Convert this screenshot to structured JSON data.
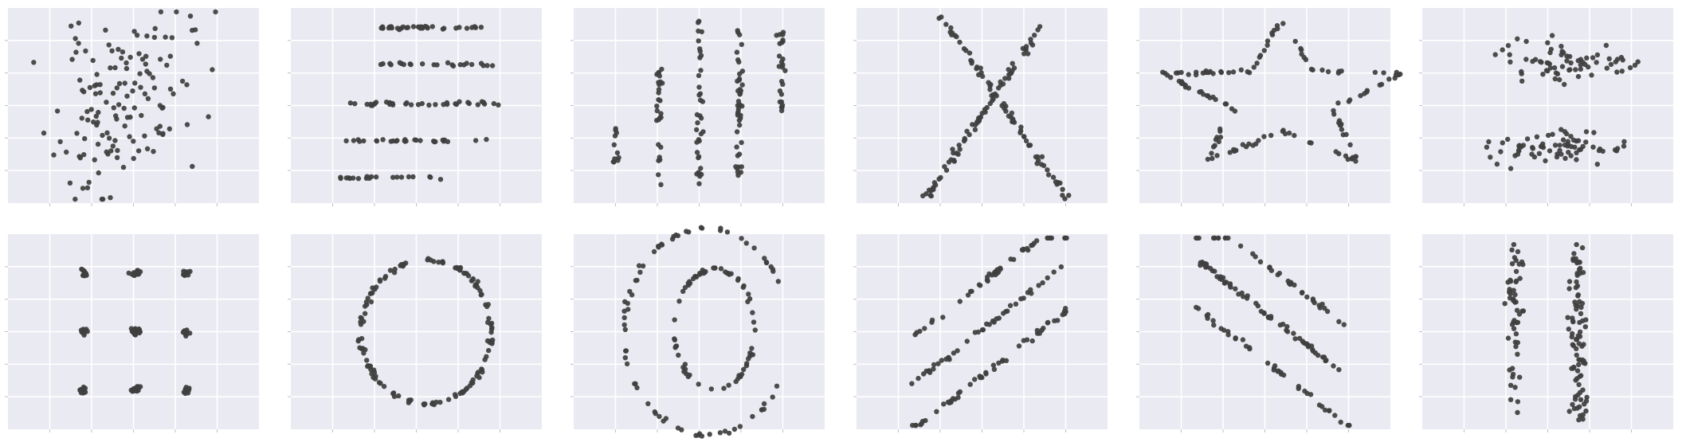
{
  "colors": {
    "panel_background": "#eaeaf2",
    "grid": "#ffffff",
    "points": "#3f3f3f"
  },
  "chart_data": [
    {
      "type": "scatter",
      "xlim": [
        0,
        100
      ],
      "ylim": [
        0,
        100
      ],
      "grid": true,
      "pattern": "away",
      "count": 142,
      "seed": 11
    },
    {
      "type": "scatter",
      "xlim": [
        0,
        100
      ],
      "ylim": [
        0,
        100
      ],
      "grid": true,
      "pattern": "h_lines",
      "count": 142,
      "seed": 12
    },
    {
      "type": "scatter",
      "xlim": [
        0,
        100
      ],
      "ylim": [
        0,
        100
      ],
      "grid": true,
      "pattern": "v_lines",
      "count": 142,
      "seed": 13
    },
    {
      "type": "scatter",
      "xlim": [
        0,
        100
      ],
      "ylim": [
        0,
        100
      ],
      "grid": true,
      "pattern": "x_shape",
      "count": 142,
      "seed": 14
    },
    {
      "type": "scatter",
      "xlim": [
        0,
        100
      ],
      "ylim": [
        0,
        100
      ],
      "grid": true,
      "pattern": "star",
      "count": 142,
      "seed": 15
    },
    {
      "type": "scatter",
      "xlim": [
        0,
        100
      ],
      "ylim": [
        0,
        100
      ],
      "grid": true,
      "pattern": "high_lines",
      "count": 142,
      "seed": 16
    },
    {
      "type": "scatter",
      "xlim": [
        0,
        100
      ],
      "ylim": [
        0,
        100
      ],
      "grid": true,
      "pattern": "dots",
      "count": 142,
      "seed": 17
    },
    {
      "type": "scatter",
      "xlim": [
        0,
        100
      ],
      "ylim": [
        0,
        100
      ],
      "grid": true,
      "pattern": "circle",
      "count": 142,
      "seed": 18
    },
    {
      "type": "scatter",
      "xlim": [
        0,
        100
      ],
      "ylim": [
        0,
        100
      ],
      "grid": true,
      "pattern": "bullseye",
      "count": 142,
      "seed": 19
    },
    {
      "type": "scatter",
      "xlim": [
        0,
        100
      ],
      "ylim": [
        0,
        100
      ],
      "grid": true,
      "pattern": "slant_up",
      "count": 142,
      "seed": 20
    },
    {
      "type": "scatter",
      "xlim": [
        0,
        100
      ],
      "ylim": [
        0,
        100
      ],
      "grid": true,
      "pattern": "slant_down",
      "count": 142,
      "seed": 21
    },
    {
      "type": "scatter",
      "xlim": [
        0,
        100
      ],
      "ylim": [
        0,
        100
      ],
      "grid": true,
      "pattern": "wide_lines",
      "count": 142,
      "seed": 22
    }
  ]
}
